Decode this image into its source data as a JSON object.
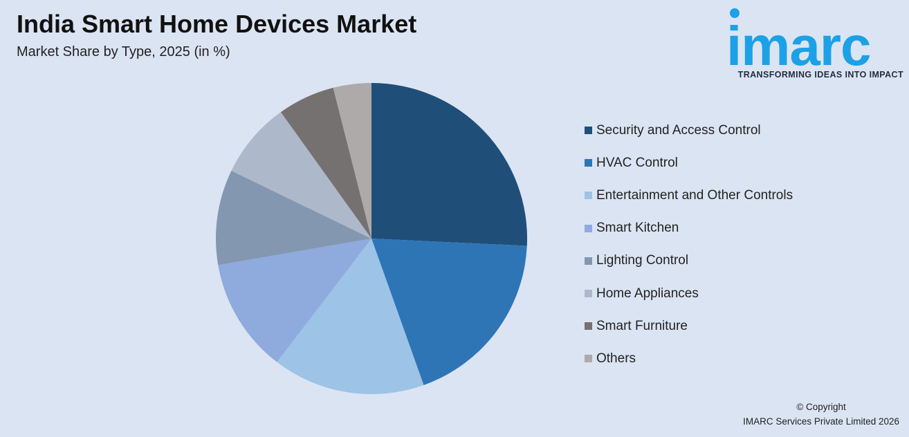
{
  "header": {
    "title": "India Smart Home Devices Market",
    "subtitle": "Market Share by Type, 2025 (in %)"
  },
  "logo": {
    "text": "imarc",
    "tagline": "TRANSFORMING IDEAS INTO IMPACT",
    "color": "#1da1e6"
  },
  "chart_data": {
    "type": "pie",
    "categories": [
      "Security and Access Control",
      "HVAC Control",
      "Entertainment and Other Controls",
      "Smart Kitchen",
      "Lighting Control",
      "Home Appliances",
      "Smart Furniture",
      "Others"
    ],
    "values": [
      26,
      19,
      16,
      12,
      10,
      8,
      6,
      4
    ],
    "colors": [
      "#1f4e79",
      "#2e75b6",
      "#9dc3e6",
      "#8faadc",
      "#8497b0",
      "#adb9ca",
      "#767171",
      "#aeaaaa"
    ],
    "title": "India Smart Home Devices Market",
    "subtitle": "Market Share by Type, 2025 (in %)",
    "legend_position": "right",
    "start_angle": "12 o'clock",
    "direction": "clockwise"
  },
  "footer": {
    "copyright_line1": "© Copyright",
    "copyright_line2": "IMARC Services Private Limited 2026"
  }
}
